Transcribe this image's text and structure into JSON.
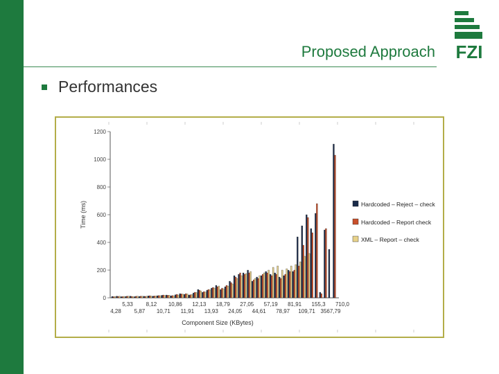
{
  "header": {
    "title": "Proposed Approach",
    "logo_text": "FZI"
  },
  "bullets": [
    "Performances"
  ],
  "colors": {
    "brand_green": "#1e7a3e",
    "frame": "#b3ad48"
  },
  "chart_data": {
    "type": "bar",
    "ylabel": "Time (ms)",
    "xlabel": "Component Size (KBytes)",
    "ylim": [
      0,
      1200
    ],
    "yticks": [
      0,
      200,
      400,
      600,
      800,
      1000,
      1200
    ],
    "xtick_labels_top": [
      "5,33",
      "8,12",
      "10,86",
      "12,13",
      "18,79",
      "27,05",
      "57,19",
      "81,91",
      "155,3",
      "710,0"
    ],
    "xtick_labels_bottom": [
      "4,28",
      "5,87",
      "10,71",
      "11,91",
      "13,93",
      "24,05",
      "44,61",
      "78,97",
      "109,71",
      "3567,79"
    ],
    "legend_position": "right",
    "series": [
      {
        "name": "Hardcoded – Reject – check",
        "color": "#1a2b4a",
        "values": [
          10,
          12,
          8,
          10,
          12,
          9,
          10,
          11,
          14,
          12,
          15,
          18,
          20,
          14,
          22,
          30,
          25,
          20,
          35,
          60,
          40,
          55,
          70,
          90,
          60,
          80,
          120,
          160,
          170,
          180,
          200,
          120,
          150,
          160,
          190,
          170,
          180,
          150,
          160,
          200,
          190,
          440,
          520,
          600,
          500,
          610,
          40,
          490,
          350,
          1110
        ]
      },
      {
        "name": "Hardcoded – Report check",
        "color": "#c9502b",
        "values": [
          8,
          10,
          9,
          12,
          10,
          11,
          12,
          10,
          15,
          13,
          16,
          20,
          18,
          16,
          25,
          28,
          30,
          22,
          40,
          55,
          45,
          60,
          75,
          80,
          70,
          90,
          110,
          150,
          180,
          170,
          180,
          130,
          140,
          170,
          180,
          160,
          170,
          140,
          170,
          190,
          200,
          230,
          380,
          580,
          470,
          680,
          30,
          500,
          0,
          1030
        ]
      },
      {
        "name": "XML – Report – check",
        "color": "#e8d28a",
        "values": [
          9,
          11,
          10,
          11,
          9,
          12,
          11,
          12,
          13,
          14,
          15,
          17,
          19,
          15,
          20,
          26,
          28,
          24,
          38,
          50,
          42,
          58,
          70,
          85,
          65,
          85,
          100,
          140,
          160,
          175,
          190,
          140,
          160,
          180,
          200,
          220,
          230,
          200,
          210,
          230,
          240,
          260,
          300,
          320,
          0,
          0,
          0,
          0,
          0,
          0
        ]
      }
    ]
  }
}
